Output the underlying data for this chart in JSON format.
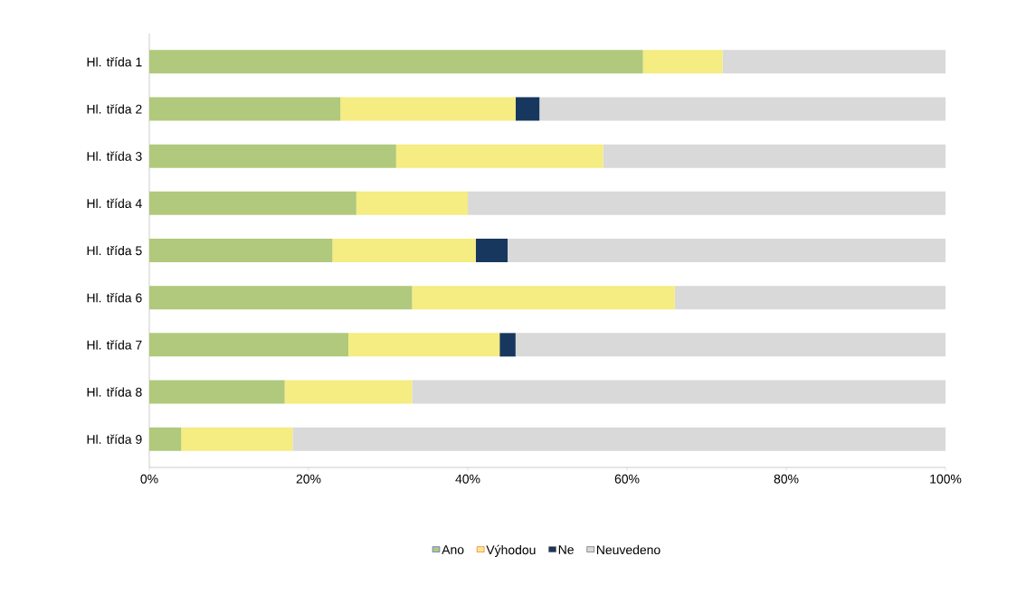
{
  "chart_data": {
    "type": "bar",
    "orientation": "horizontal",
    "stacked": true,
    "categories": [
      "Hl. třída 1",
      "Hl. třída 2",
      "Hl. třída 3",
      "Hl. třída 4",
      "Hl. třída 5",
      "Hl. třída 6",
      "Hl. třída 7",
      "Hl. třída 8",
      "Hl. třída 9"
    ],
    "series": [
      {
        "name": "Ano",
        "color": "#b0c97c",
        "values": [
          62,
          24,
          31,
          26,
          23,
          33,
          25,
          17,
          4
        ]
      },
      {
        "name": "Výhodou",
        "color": "#f5ec82",
        "values": [
          10,
          22,
          26,
          14,
          18,
          33,
          19,
          16,
          14
        ]
      },
      {
        "name": "Ne",
        "color": "#17375e",
        "values": [
          0,
          3,
          0,
          0,
          4,
          0,
          2,
          0,
          0
        ]
      },
      {
        "name": "Neuvedeno",
        "color": "#d9d9d9",
        "values": [
          28,
          51,
          43,
          60,
          55,
          34,
          54,
          67,
          82
        ]
      }
    ],
    "xlim": [
      0,
      100
    ],
    "xticks": [
      {
        "value": 0,
        "label": "0%"
      },
      {
        "value": 20,
        "label": "20%"
      },
      {
        "value": 40,
        "label": "40%"
      },
      {
        "value": 60,
        "label": "60%"
      },
      {
        "value": 80,
        "label": "80%"
      },
      {
        "value": 100,
        "label": "100%"
      }
    ],
    "grid": false,
    "legend": "bottom"
  }
}
